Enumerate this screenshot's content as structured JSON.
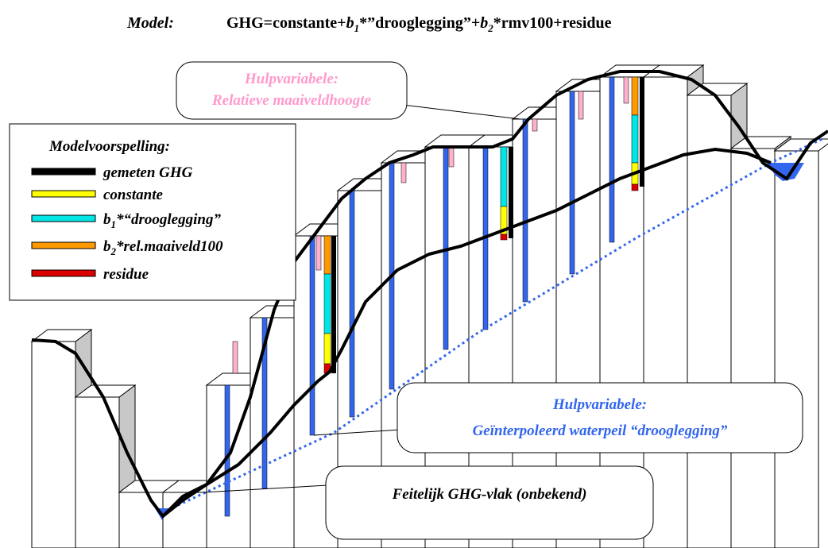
{
  "title": {
    "label": "Model:",
    "formula": [
      "GHG=constante+",
      "b",
      "1",
      "*”drooglegging”+",
      "b",
      "2",
      "*rmv100+residue"
    ]
  },
  "callout_top": {
    "line1": "Hulpvariabele:",
    "line2": "Relatieve maaiveldhoogte"
  },
  "legend": {
    "title": "Modelvoorspelling:",
    "items": [
      {
        "parts": [
          "gemeten GHG"
        ],
        "color": "#000000"
      },
      {
        "parts": [
          "constante"
        ],
        "color": "#ffff00"
      },
      {
        "parts": [
          "b",
          "1",
          "*“drooglegging”"
        ],
        "color": "#00e6e6"
      },
      {
        "parts": [
          "b",
          "2",
          "*rel.maaiveld100"
        ],
        "color": "#ff9900"
      },
      {
        "parts": [
          "residue"
        ],
        "color": "#dd0000"
      }
    ]
  },
  "callout_right": {
    "line1": "Hulpvariabele:",
    "line2": "Geïnterpoleerd waterpeil “drooglegging”"
  },
  "callout_bottom": {
    "text": "Feitelijk GHG-vlak (onbekend)"
  }
}
